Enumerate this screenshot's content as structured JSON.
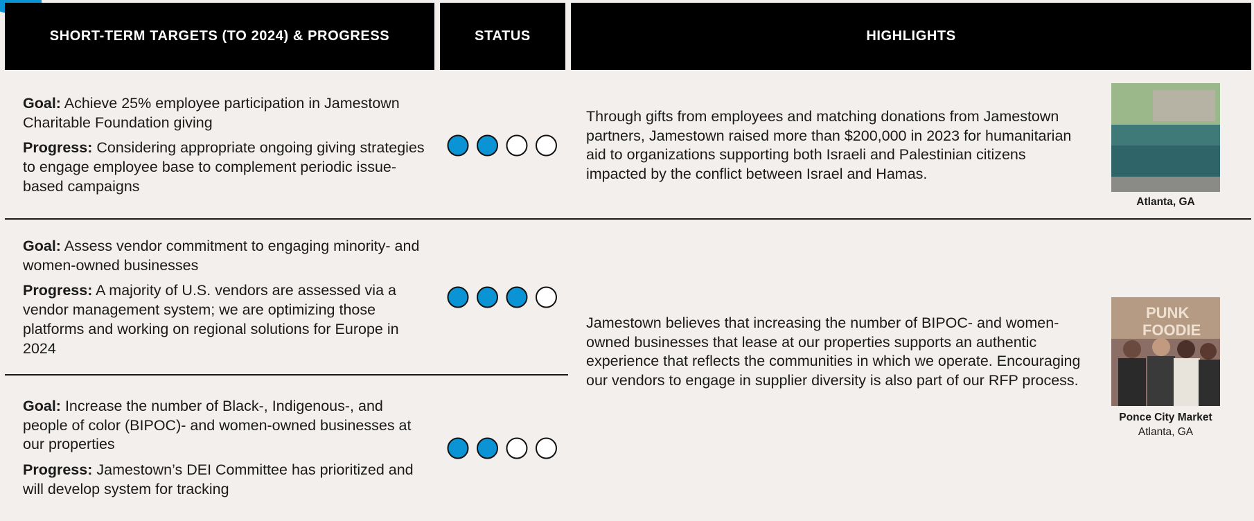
{
  "header": {
    "columns": [
      "SHORT-TERM TARGETS (TO 2024) & PROGRESS",
      "STATUS",
      "HIGHLIGHTS"
    ]
  },
  "rows": [
    {
      "goal": {
        "label": "Goal:",
        "text": "Achieve 25% employee participation in Jamestown Charitable Foundation giving"
      },
      "progress": {
        "label": "Progress:",
        "text": "Considering appropriate ongoing giving strategies to engage employee base to complement periodic issue-based campaigns"
      },
      "status": {
        "filled": 2,
        "total": 4
      }
    },
    {
      "goal": {
        "label": "Goal:",
        "text": "Assess vendor commitment to engaging minority- and women-owned businesses"
      },
      "progress": {
        "label": "Progress:",
        "text": "A majority of U.S. vendors are assessed via a vendor management system; we are optimizing those platforms and working on regional solutions for Europe in 2024"
      },
      "status": {
        "filled": 3,
        "total": 4
      }
    },
    {
      "goal": {
        "label": "Goal:",
        "text": "Increase the number of Black-, Indigenous-, and people of color (BIPOC)- and women-owned businesses at our properties"
      },
      "progress": {
        "label": "Progress:",
        "text": "Jamestown’s DEI Committee has prioritized and will develop system for tracking"
      },
      "status": {
        "filled": 2,
        "total": 4
      }
    }
  ],
  "highlights": [
    {
      "text": "Through gifts from employees and matching donations from Jamestown partners, Jamestown raised more than $200,000 in 2023 for humanitarian aid to organizations supporting both Israeli and Palestinian citizens impacted by the conflict between Israel and Hamas.",
      "caption_title": "Atlanta, GA"
    },
    {
      "text": "Jamestown believes that increasing the number of BIPOC- and women- owned businesses that lease at our properties supports an authentic experience that reflects the communities in which we operate. Encouraging our vendors to engage in supplier diversity is also part of our RFP process.",
      "caption_title": "Ponce City Market",
      "caption_sub": "Atlanta, GA"
    }
  ]
}
